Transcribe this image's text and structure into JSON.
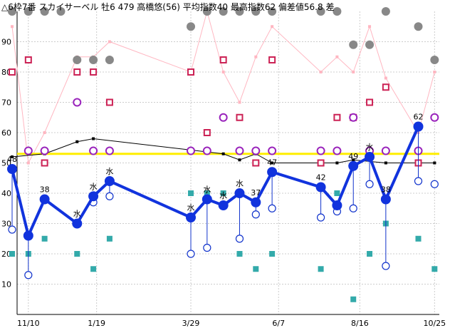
{
  "chart_data": {
    "type": "line",
    "title": "△6枠7番 スカイサーベル 牡6 479 高橋悠(56) 平均指数40 最高指数62 偏差値56.8 差",
    "xlabel": "",
    "ylabel": "",
    "ylim": [
      0,
      100
    ],
    "x_tick_labels": [
      "11/10",
      "1/19",
      "3/29",
      "6/7",
      "8/16",
      "10/25"
    ],
    "y_tick_labels": [
      "10",
      "20",
      "30",
      "40",
      "50",
      "60",
      "70",
      "80",
      "90"
    ],
    "reference_line": 53,
    "race_index": {
      "x": [
        0,
        1,
        2,
        4,
        5,
        6,
        11,
        12,
        13,
        14,
        15,
        16,
        19,
        20,
        21,
        22,
        23,
        25
      ],
      "values": [
        48,
        26,
        38,
        30,
        39,
        44,
        32,
        38,
        36,
        40,
        37,
        47,
        42,
        36,
        49,
        52,
        38,
        62
      ],
      "labels": [
        "48",
        "",
        "38",
        "水",
        "水",
        "水",
        "水",
        "水",
        "水",
        "水",
        "37",
        "47",
        "42",
        "",
        "49",
        "水",
        "38",
        "62"
      ]
    },
    "lower_points": {
      "x": [
        0,
        1,
        5,
        6,
        11,
        12,
        14,
        15,
        16,
        19,
        20,
        21,
        22,
        23,
        25,
        26
      ],
      "values": [
        28,
        13,
        37,
        39,
        20,
        22,
        25,
        33,
        35,
        32,
        34,
        35,
        43,
        16,
        44,
        43
      ]
    },
    "teal_squares": {
      "x": [
        0,
        1,
        2,
        4,
        5,
        6,
        11,
        12,
        13,
        14,
        15,
        16,
        19,
        20,
        21,
        22,
        23,
        25,
        26
      ],
      "values": [
        20,
        20,
        25,
        20,
        15,
        25,
        40,
        40,
        40,
        20,
        15,
        20,
        15,
        40,
        5,
        20,
        30,
        25,
        15
      ]
    },
    "purple_circles": {
      "x": [
        1,
        2,
        4,
        5,
        6,
        11,
        12,
        13,
        14,
        15,
        16,
        19,
        20,
        21,
        22,
        23,
        25,
        26
      ],
      "values": [
        54,
        54,
        70,
        54,
        54,
        54,
        54,
        65,
        54,
        54,
        54,
        54,
        54,
        65,
        54,
        54,
        54,
        65
      ]
    },
    "red_squares": {
      "x": [
        0,
        1,
        2,
        4,
        5,
        6,
        11,
        12,
        13,
        14,
        15,
        16,
        19,
        20,
        21,
        22,
        23,
        25
      ],
      "values": [
        80,
        84,
        50,
        80,
        80,
        70,
        80,
        60,
        84,
        65,
        50,
        84,
        50,
        65,
        65,
        70,
        75,
        50
      ]
    },
    "gray_circles": {
      "x": [
        0,
        1,
        2,
        3,
        4,
        5,
        6,
        11,
        12,
        13,
        14,
        15,
        16,
        19,
        20,
        21,
        22,
        23,
        25,
        26
      ],
      "values": [
        100,
        100,
        100,
        100,
        84,
        84,
        84,
        95,
        100,
        100,
        100,
        100,
        100,
        100,
        100,
        89,
        89,
        100,
        95,
        84
      ]
    },
    "pink_line": {
      "x": [
        0,
        1,
        2,
        4,
        5,
        6,
        11,
        12,
        13,
        14,
        15,
        16,
        19,
        20,
        21,
        22,
        23,
        25,
        26
      ],
      "values": [
        95,
        50,
        60,
        85,
        85,
        90,
        80,
        100,
        80,
        70,
        85,
        95,
        80,
        85,
        80,
        95,
        78,
        60,
        80
      ]
    },
    "black_line": {
      "x": [
        0,
        2,
        4,
        5,
        13,
        14,
        15,
        16,
        20,
        21,
        23,
        25,
        26
      ],
      "values": [
        52,
        53,
        57,
        58,
        53,
        51,
        53,
        50,
        50,
        51,
        50,
        50,
        50
      ]
    }
  }
}
